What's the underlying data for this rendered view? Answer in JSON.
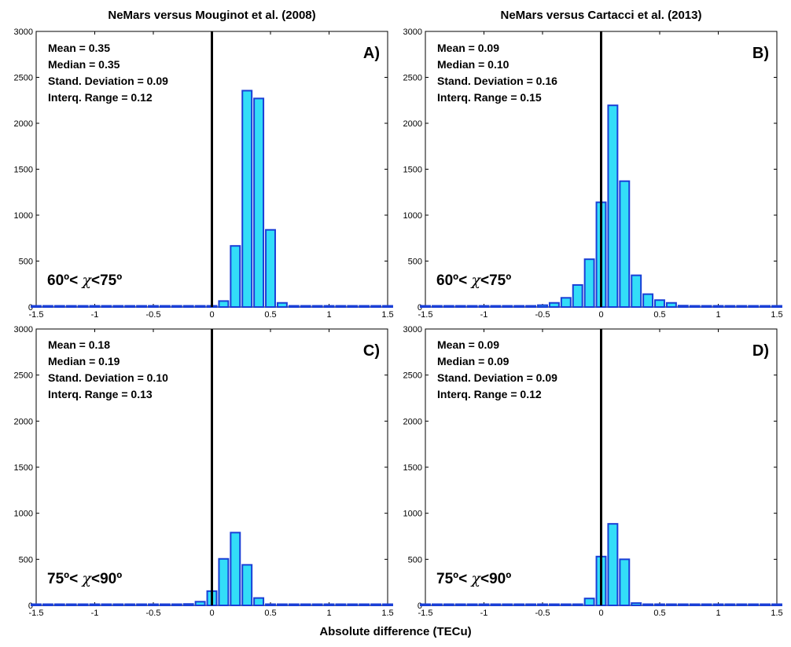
{
  "chart_data": [
    {
      "type": "bar",
      "panel": "A)",
      "title": "NeMars versus Mouginot et al. (2008)",
      "xlim": [
        -1.5,
        1.5
      ],
      "ylim": [
        0,
        3000
      ],
      "xticks": [
        "-1.5",
        "-1",
        "-0.5",
        "0",
        "0.5",
        "1",
        "1.5"
      ],
      "yticks": [
        "0",
        "500",
        "1000",
        "1500",
        "2000",
        "2500",
        "3000"
      ],
      "zero_line": 0,
      "stats": [
        "Mean =  0.35",
        "Median = 0.35",
        "Stand. Deviation = 0.09",
        "Interq. Range = 0.12"
      ],
      "angle": {
        "pre": "60º< ",
        "chi": "χ",
        "post": "<75º"
      },
      "x": [
        -1.5,
        -1.4,
        -1.3,
        -1.2,
        -1.1,
        -1.0,
        -0.9,
        -0.8,
        -0.7,
        -0.6,
        -0.5,
        -0.4,
        -0.3,
        -0.2,
        -0.1,
        0.0,
        0.1,
        0.2,
        0.3,
        0.4,
        0.5,
        0.6,
        0.7,
        0.8,
        0.9,
        1.0,
        1.1,
        1.2,
        1.3,
        1.4,
        1.5
      ],
      "values": [
        0,
        0,
        0,
        0,
        0,
        0,
        0,
        0,
        0,
        0,
        0,
        0,
        0,
        0,
        0,
        5,
        65,
        665,
        2355,
        2270,
        840,
        45,
        5,
        0,
        0,
        0,
        0,
        0,
        0,
        0,
        0
      ]
    },
    {
      "type": "bar",
      "panel": "B)",
      "title": "NeMars versus Cartacci et al. (2013)",
      "xlim": [
        -1.5,
        1.5
      ],
      "ylim": [
        0,
        3000
      ],
      "xticks": [
        "-1.5",
        "-1",
        "-0.5",
        "0",
        "0.5",
        "1",
        "1.5"
      ],
      "yticks": [
        "0",
        "500",
        "1000",
        "1500",
        "2000",
        "2500",
        "3000"
      ],
      "zero_line": 0,
      "stats": [
        "Mean =  0.09",
        "Median = 0.10",
        "Stand. Deviation = 0.16",
        "Interq. Range = 0.15"
      ],
      "angle": {
        "pre": "60º< ",
        "chi": "χ",
        "post": "<75º"
      },
      "x": [
        -1.5,
        -1.4,
        -1.3,
        -1.2,
        -1.1,
        -1.0,
        -0.9,
        -0.8,
        -0.7,
        -0.6,
        -0.5,
        -0.4,
        -0.3,
        -0.2,
        -0.1,
        0.0,
        0.1,
        0.2,
        0.3,
        0.4,
        0.5,
        0.6,
        0.7,
        0.8,
        0.9,
        1.0,
        1.1,
        1.2,
        1.3,
        1.4,
        1.5
      ],
      "values": [
        0,
        0,
        0,
        0,
        0,
        0,
        0,
        2,
        5,
        10,
        20,
        45,
        100,
        240,
        520,
        1140,
        2195,
        1370,
        345,
        140,
        75,
        45,
        15,
        5,
        2,
        0,
        0,
        0,
        0,
        0,
        0
      ]
    },
    {
      "type": "bar",
      "panel": "C)",
      "title": "",
      "xlim": [
        -1.5,
        1.5
      ],
      "ylim": [
        0,
        3000
      ],
      "xticks": [
        "-1.5",
        "-1",
        "-0.5",
        "0",
        "0.5",
        "1",
        "1.5"
      ],
      "yticks": [
        "0",
        "500",
        "1000",
        "1500",
        "2000",
        "2500",
        "3000"
      ],
      "zero_line": 0,
      "stats": [
        "Mean =  0.18",
        "Median = 0.19",
        "Stand. Deviation = 0.10",
        "Interq. Range = 0.13"
      ],
      "angle": {
        "pre": "75º< ",
        "chi": "χ",
        "post": "<90º"
      },
      "x": [
        -1.5,
        -1.4,
        -1.3,
        -1.2,
        -1.1,
        -1.0,
        -0.9,
        -0.8,
        -0.7,
        -0.6,
        -0.5,
        -0.4,
        -0.3,
        -0.2,
        -0.1,
        0.0,
        0.1,
        0.2,
        0.3,
        0.4,
        0.5,
        0.6,
        0.7,
        0.8,
        0.9,
        1.0,
        1.1,
        1.2,
        1.3,
        1.4,
        1.5
      ],
      "values": [
        0,
        0,
        0,
        0,
        0,
        0,
        0,
        0,
        0,
        0,
        0,
        0,
        2,
        15,
        40,
        155,
        505,
        790,
        440,
        80,
        8,
        0,
        0,
        0,
        0,
        0,
        0,
        0,
        0,
        0,
        0
      ]
    },
    {
      "type": "bar",
      "panel": "D)",
      "title": "",
      "xlim": [
        -1.5,
        1.5
      ],
      "ylim": [
        0,
        3000
      ],
      "xticks": [
        "-1.5",
        "-1",
        "-0.5",
        "0",
        "0.5",
        "1",
        "1.5"
      ],
      "yticks": [
        "0",
        "500",
        "1000",
        "1500",
        "2000",
        "2500",
        "3000"
      ],
      "zero_line": 0,
      "stats": [
        "Mean =  0.09",
        "Median = 0.09",
        "Stand. Deviation = 0.09",
        "Interq. Range = 0.12"
      ],
      "angle": {
        "pre": "75º< ",
        "chi": "χ",
        "post": "<90º"
      },
      "x": [
        -1.5,
        -1.4,
        -1.3,
        -1.2,
        -1.1,
        -1.0,
        -0.9,
        -0.8,
        -0.7,
        -0.6,
        -0.5,
        -0.4,
        -0.3,
        -0.2,
        -0.1,
        0.0,
        0.1,
        0.2,
        0.3,
        0.4,
        0.5,
        0.6,
        0.7,
        0.8,
        0.9,
        1.0,
        1.1,
        1.2,
        1.3,
        1.4,
        1.5
      ],
      "values": [
        0,
        0,
        0,
        0,
        0,
        0,
        0,
        0,
        0,
        0,
        0,
        0,
        2,
        10,
        75,
        530,
        885,
        500,
        25,
        2,
        0,
        0,
        0,
        0,
        0,
        0,
        0,
        0,
        0,
        0,
        0
      ]
    }
  ],
  "xlabel": "Absolute difference (TECu)",
  "colors": {
    "bar_fill": "#33ddf8",
    "bar_edge": "#1a3fd6",
    "zero_line": "#000000",
    "axis": "#000000"
  }
}
